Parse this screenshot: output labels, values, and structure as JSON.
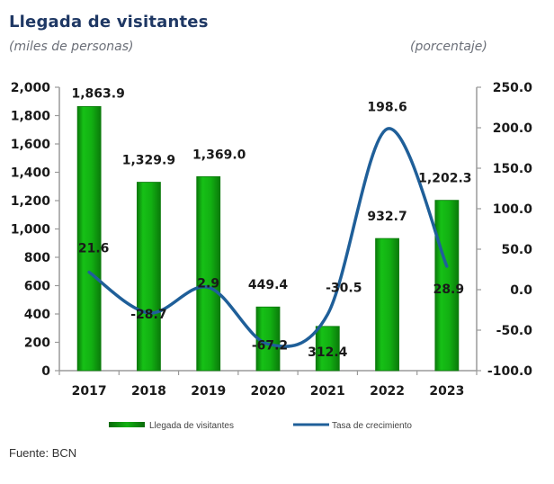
{
  "header": {
    "title": "Llegada de visitantes",
    "subtitle_left": "(miles de personas)",
    "subtitle_right": "(porcentaje)"
  },
  "footer": {
    "source": "Fuente: BCN"
  },
  "colors": {
    "bar": "#12b012",
    "bar_dark": "#0a7a0a",
    "line": "#1f5f99",
    "axis": "#9a9a9a"
  },
  "chart_data": {
    "type": "bar",
    "title": "Llegada de visitantes",
    "xlabel": "",
    "ylabel": "(miles de personas)",
    "y2label": "(porcentaje)",
    "categories": [
      "2017",
      "2018",
      "2019",
      "2020",
      "2021",
      "2022",
      "2023"
    ],
    "series": [
      {
        "name": "Llegada de visitantes",
        "type": "bar",
        "axis": "left",
        "values": [
          1863.9,
          1329.9,
          1369.0,
          449.4,
          312.4,
          932.7,
          1202.3
        ],
        "labels": [
          "1,863.9",
          "1,329.9",
          "1,369.0",
          "449.4",
          "312.4",
          "932.7",
          "1,202.3"
        ]
      },
      {
        "name": "Tasa de crecimiento",
        "type": "line",
        "axis": "right",
        "smooth": true,
        "values": [
          21.6,
          -28.7,
          2.9,
          -67.2,
          -30.5,
          198.6,
          28.9
        ],
        "labels": [
          "21.6",
          "-28.7",
          "2.9",
          "-67.2",
          "-30.5",
          "198.6",
          "28.9"
        ]
      }
    ],
    "ylim": [
      0,
      2000
    ],
    "yticks": [
      0,
      200,
      400,
      600,
      800,
      1000,
      1200,
      1400,
      1600,
      1800,
      2000
    ],
    "ytick_labels": [
      "0",
      "200",
      "400",
      "600",
      "800",
      "1,000",
      "1,200",
      "1,400",
      "1,600",
      "1,800",
      "2,000"
    ],
    "y2lim": [
      -100,
      250
    ],
    "y2ticks": [
      -100,
      -50,
      0,
      50,
      100,
      150,
      200,
      250
    ],
    "y2tick_labels": [
      "-100.0",
      "-50.0",
      "0.0",
      "50.0",
      "100.0",
      "150.0",
      "200.0",
      "250.0"
    ],
    "grid": false,
    "legend": {
      "position": "bottom",
      "entries": [
        "Llegada de visitantes",
        "Tasa de crecimiento"
      ]
    }
  }
}
